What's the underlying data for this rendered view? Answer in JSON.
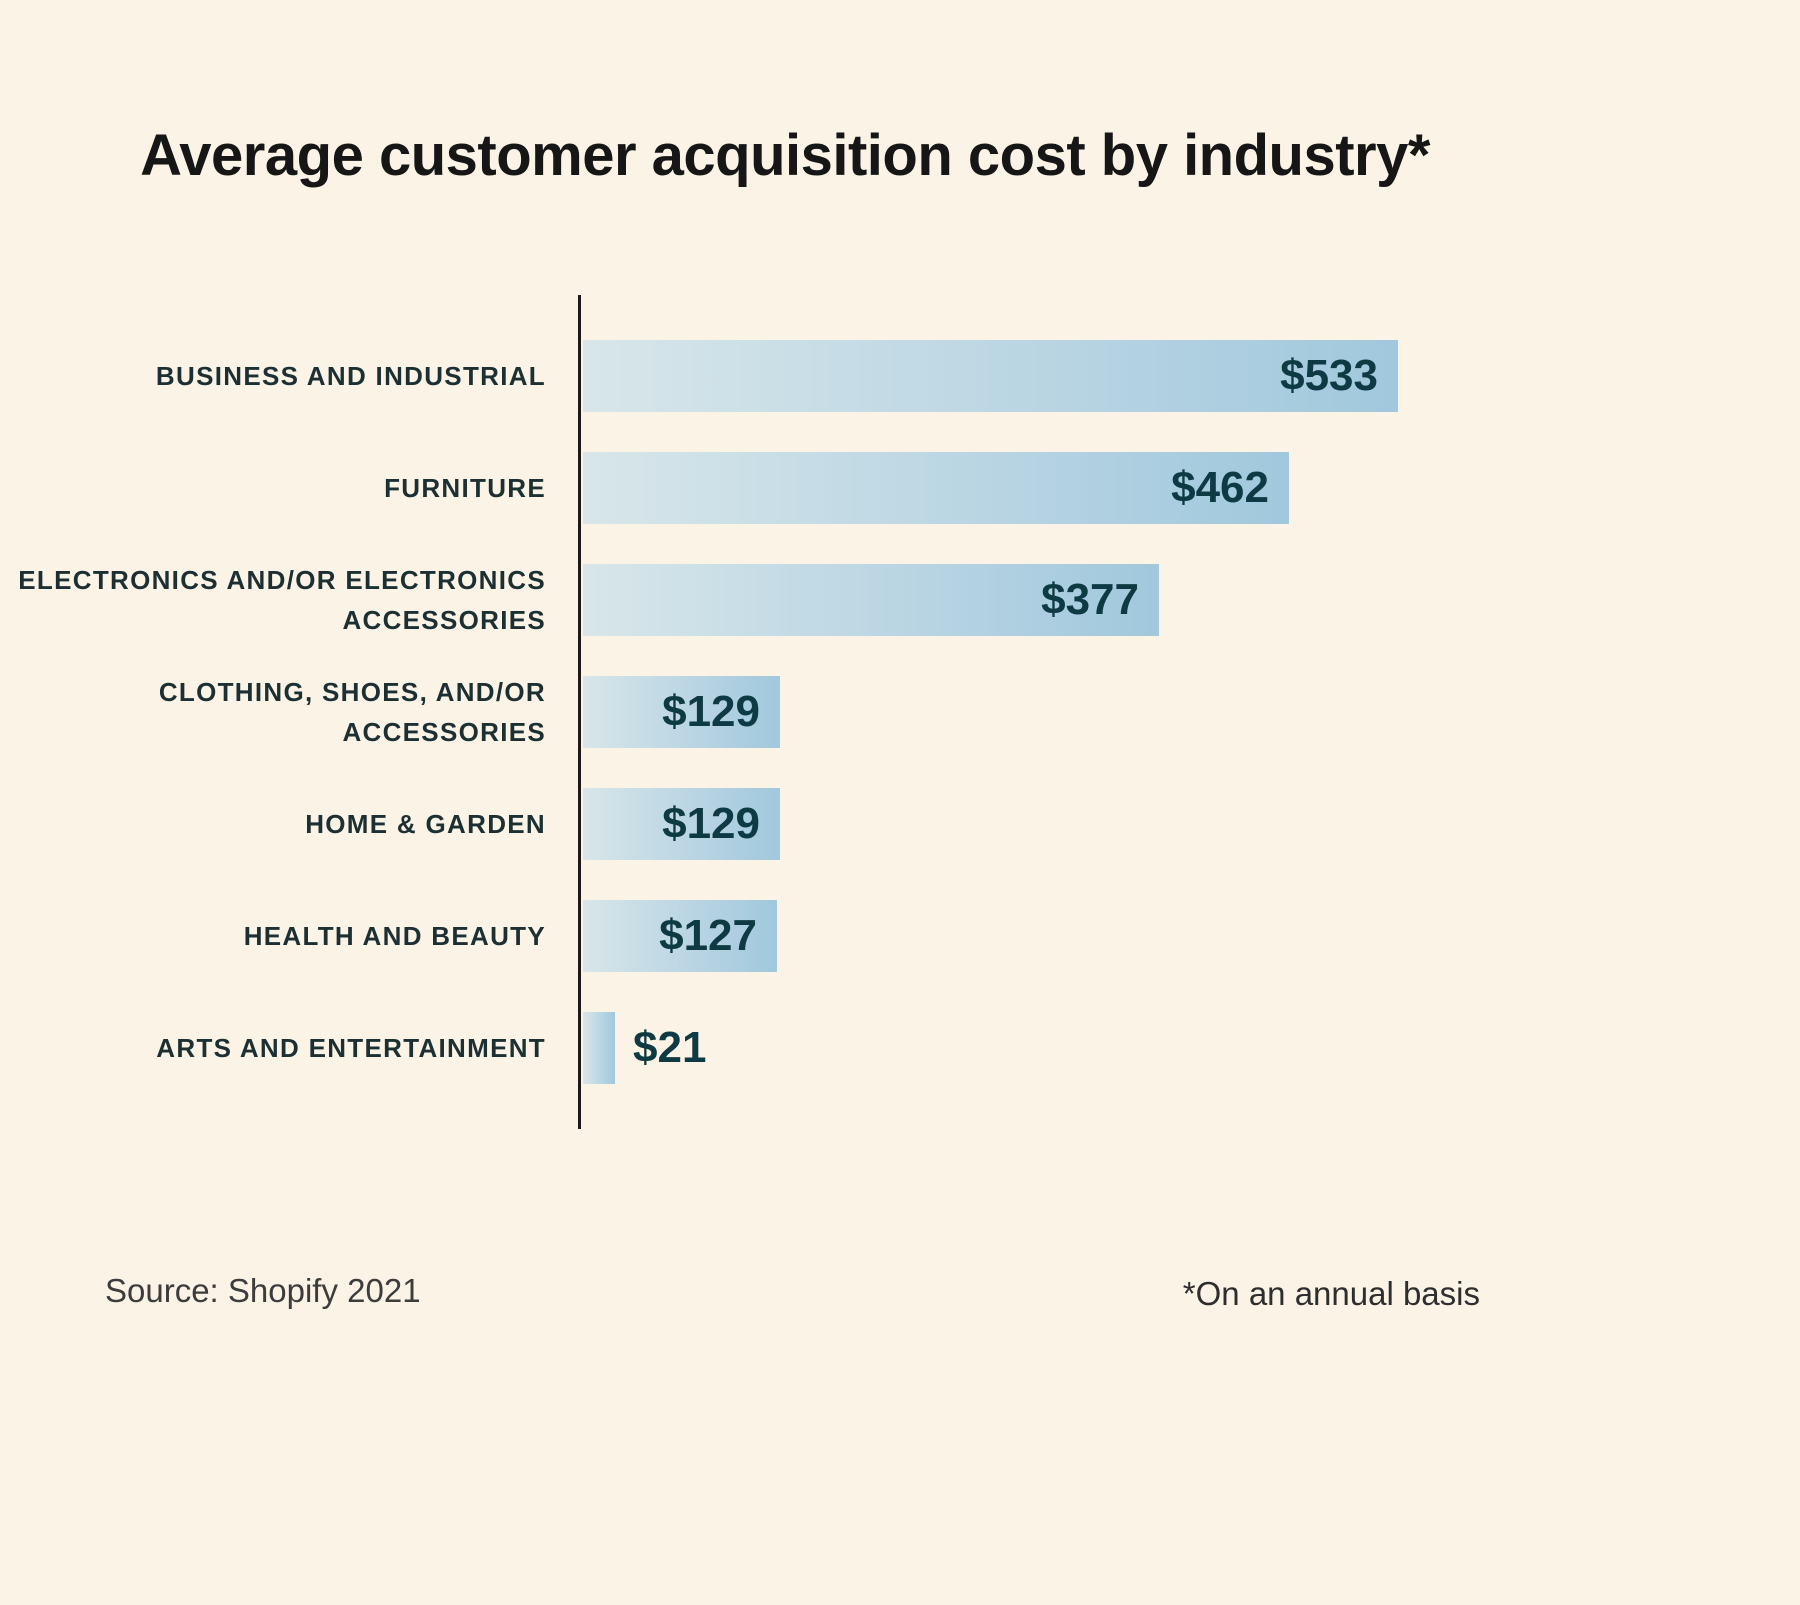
{
  "title": "Average customer acquisition cost by industry*",
  "footer": {
    "source": "Source: Shopify 2021",
    "note": "*On an annual basis"
  },
  "chart_data": {
    "type": "bar",
    "orientation": "horizontal",
    "title": "Average customer acquisition cost by industry*",
    "categories": [
      "BUSINESS AND INDUSTRIAL",
      "FURNITURE",
      "ELECTRONICS AND/OR ELECTRONICS ACCESSORIES",
      "CLOTHING, SHOES, AND/OR ACCESSORIES",
      "HOME & GARDEN",
      "HEALTH AND BEAUTY",
      "ARTS AND ENTERTAINMENT"
    ],
    "values": [
      533,
      462,
      377,
      129,
      129,
      127,
      21
    ],
    "value_labels": [
      "$533",
      "$462",
      "$377",
      "$129",
      "$129",
      "$127",
      "$21"
    ],
    "xlabel": "",
    "ylabel": "",
    "xlim": [
      0,
      545
    ],
    "grid": false,
    "legend": "none",
    "colors": {
      "background": "#faf3e6",
      "bar_gradient_start": "#d8e6ea",
      "bar_gradient_end": "#a1c8dd",
      "value_text": "#0d3a43",
      "category_text": "#1c2f33",
      "axis_line": "#1a1a1a",
      "title_text": "#161616"
    }
  }
}
